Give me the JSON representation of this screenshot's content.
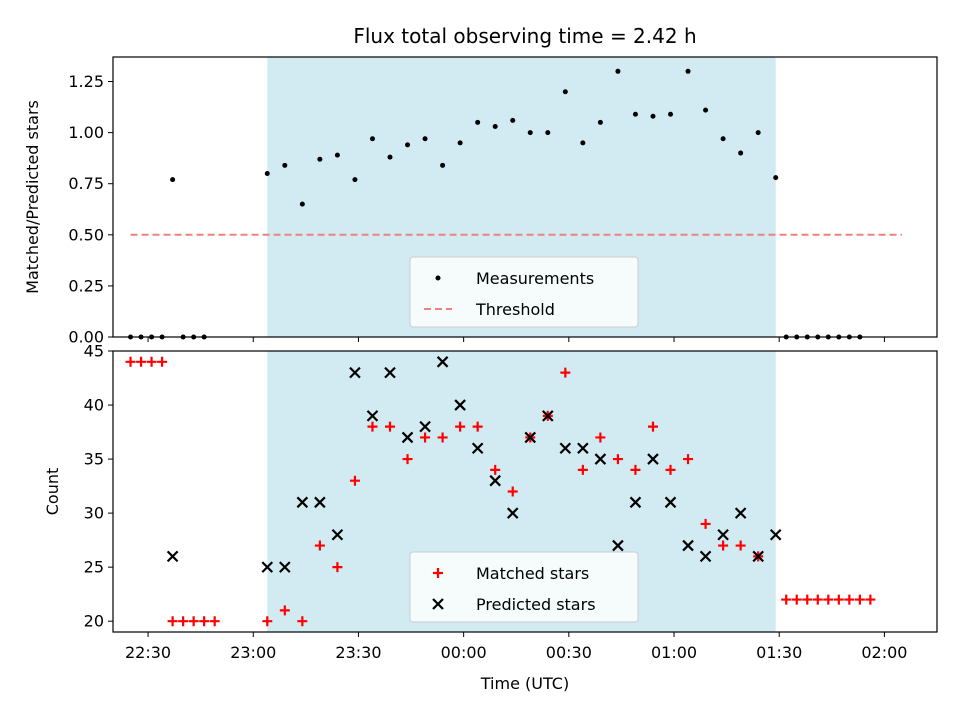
{
  "chart_data": [
    {
      "type": "scatter",
      "title": "Flux total observing time = 2.42 h",
      "xlabel": "",
      "ylabel": "Matched/Predicted stars",
      "xlim": [
        "22:20",
        "02:15"
      ],
      "ylim": [
        0,
        1.37
      ],
      "yticks": [
        "0.00",
        "0.25",
        "0.50",
        "0.75",
        "1.00",
        "1.25"
      ],
      "grid": false,
      "legend_position": "lower center",
      "shaded_interval": [
        "23:04",
        "01:29"
      ],
      "shade_color": "#add8e6",
      "series": [
        {
          "name": "Measurements",
          "marker": "dot",
          "color": "#000000",
          "points": [
            [
              "22:25",
              0.0
            ],
            [
              "22:28",
              0.0
            ],
            [
              "22:31",
              0.0
            ],
            [
              "22:34",
              0.0
            ],
            [
              "22:37",
              0.77
            ],
            [
              "22:40",
              0.0
            ],
            [
              "22:43",
              0.0
            ],
            [
              "22:46",
              0.0
            ],
            [
              "23:04",
              0.8
            ],
            [
              "23:09",
              0.84
            ],
            [
              "23:14",
              0.65
            ],
            [
              "23:19",
              0.87
            ],
            [
              "23:24",
              0.89
            ],
            [
              "23:29",
              0.77
            ],
            [
              "23:34",
              0.97
            ],
            [
              "23:39",
              0.88
            ],
            [
              "23:44",
              0.94
            ],
            [
              "23:49",
              0.97
            ],
            [
              "23:54",
              0.84
            ],
            [
              "23:59",
              0.95
            ],
            [
              "00:04",
              1.05
            ],
            [
              "00:09",
              1.03
            ],
            [
              "00:14",
              1.06
            ],
            [
              "00:19",
              1.0
            ],
            [
              "00:24",
              1.0
            ],
            [
              "00:29",
              1.2
            ],
            [
              "00:34",
              0.95
            ],
            [
              "00:39",
              1.05
            ],
            [
              "00:44",
              1.3
            ],
            [
              "00:49",
              1.09
            ],
            [
              "00:54",
              1.08
            ],
            [
              "00:59",
              1.09
            ],
            [
              "01:04",
              1.3
            ],
            [
              "01:09",
              1.11
            ],
            [
              "01:14",
              0.97
            ],
            [
              "01:19",
              0.9
            ],
            [
              "01:24",
              1.0
            ],
            [
              "01:29",
              0.78
            ],
            [
              "01:32",
              0.0
            ],
            [
              "01:35",
              0.0
            ],
            [
              "01:38",
              0.0
            ],
            [
              "01:41",
              0.0
            ],
            [
              "01:44",
              0.0
            ],
            [
              "01:47",
              0.0
            ],
            [
              "01:50",
              0.0
            ],
            [
              "01:53",
              0.0
            ]
          ]
        },
        {
          "name": "Threshold",
          "marker": "dashed-line",
          "color": "#f08080",
          "points": [
            [
              "22:25",
              0.5
            ],
            [
              "02:05",
              0.5
            ]
          ]
        }
      ]
    },
    {
      "type": "scatter",
      "title": "",
      "xlabel": "Time (UTC)",
      "ylabel": "Count",
      "xlim": [
        "22:20",
        "02:15"
      ],
      "ylim": [
        19,
        45
      ],
      "yticks": [
        "20",
        "25",
        "30",
        "35",
        "40",
        "45"
      ],
      "xticks": [
        "22:30",
        "23:00",
        "23:30",
        "00:00",
        "00:30",
        "01:00",
        "01:30",
        "02:00"
      ],
      "grid": false,
      "legend_position": "lower center",
      "shaded_interval": [
        "23:04",
        "01:29"
      ],
      "shade_color": "#add8e6",
      "series": [
        {
          "name": "Matched stars",
          "marker": "plus",
          "color": "#ff0000",
          "points": [
            [
              "22:25",
              44
            ],
            [
              "22:28",
              44
            ],
            [
              "22:31",
              44
            ],
            [
              "22:34",
              44
            ],
            [
              "22:37",
              20
            ],
            [
              "22:40",
              20
            ],
            [
              "22:43",
              20
            ],
            [
              "22:46",
              20
            ],
            [
              "22:49",
              20
            ],
            [
              "23:04",
              20
            ],
            [
              "23:09",
              21
            ],
            [
              "23:14",
              20
            ],
            [
              "23:19",
              27
            ],
            [
              "23:24",
              25
            ],
            [
              "23:29",
              33
            ],
            [
              "23:34",
              38
            ],
            [
              "23:39",
              38
            ],
            [
              "23:44",
              35
            ],
            [
              "23:49",
              37
            ],
            [
              "23:54",
              37
            ],
            [
              "23:59",
              38
            ],
            [
              "00:04",
              38
            ],
            [
              "00:09",
              34
            ],
            [
              "00:14",
              32
            ],
            [
              "00:19",
              37
            ],
            [
              "00:24",
              39
            ],
            [
              "00:29",
              43
            ],
            [
              "00:34",
              34
            ],
            [
              "00:39",
              37
            ],
            [
              "00:44",
              35
            ],
            [
              "00:49",
              34
            ],
            [
              "00:54",
              38
            ],
            [
              "00:59",
              34
            ],
            [
              "01:04",
              35
            ],
            [
              "01:09",
              29
            ],
            [
              "01:14",
              27
            ],
            [
              "01:19",
              27
            ],
            [
              "01:24",
              26
            ],
            [
              "01:32",
              22
            ],
            [
              "01:35",
              22
            ],
            [
              "01:38",
              22
            ],
            [
              "01:41",
              22
            ],
            [
              "01:44",
              22
            ],
            [
              "01:47",
              22
            ],
            [
              "01:50",
              22
            ],
            [
              "01:53",
              22
            ],
            [
              "01:56",
              22
            ]
          ]
        },
        {
          "name": "Predicted stars",
          "marker": "x",
          "color": "#000000",
          "points": [
            [
              "22:37",
              26
            ],
            [
              "23:04",
              25
            ],
            [
              "23:09",
              25
            ],
            [
              "23:14",
              31
            ],
            [
              "23:19",
              31
            ],
            [
              "23:24",
              28
            ],
            [
              "23:29",
              43
            ],
            [
              "23:34",
              39
            ],
            [
              "23:39",
              43
            ],
            [
              "23:44",
              37
            ],
            [
              "23:49",
              38
            ],
            [
              "23:54",
              44
            ],
            [
              "23:59",
              40
            ],
            [
              "00:04",
              36
            ],
            [
              "00:09",
              33
            ],
            [
              "00:14",
              30
            ],
            [
              "00:19",
              37
            ],
            [
              "00:24",
              39
            ],
            [
              "00:29",
              36
            ],
            [
              "00:34",
              36
            ],
            [
              "00:39",
              35
            ],
            [
              "00:44",
              27
            ],
            [
              "00:49",
              31
            ],
            [
              "00:54",
              35
            ],
            [
              "00:59",
              31
            ],
            [
              "01:04",
              27
            ],
            [
              "01:09",
              26
            ],
            [
              "01:14",
              28
            ],
            [
              "01:19",
              30
            ],
            [
              "01:24",
              26
            ],
            [
              "01:29",
              28
            ]
          ]
        }
      ]
    }
  ]
}
